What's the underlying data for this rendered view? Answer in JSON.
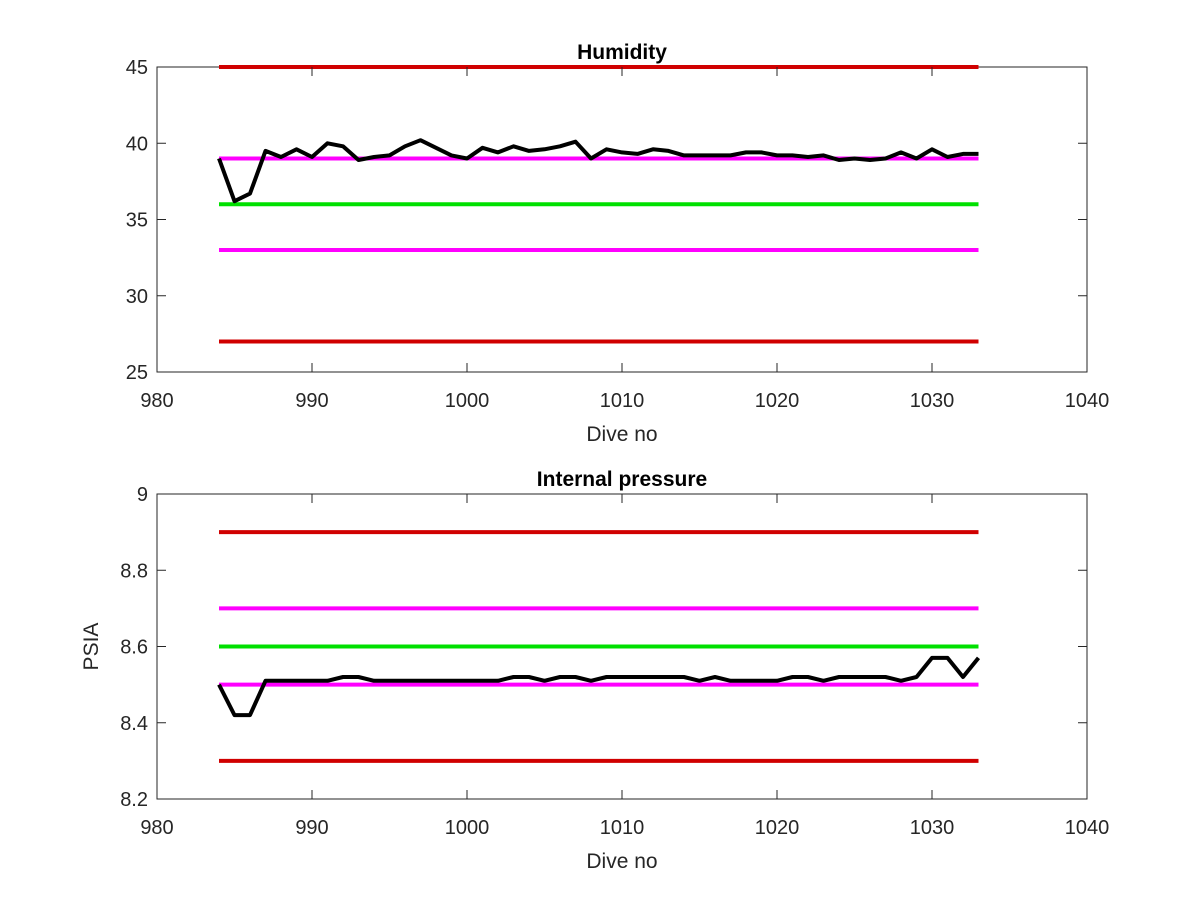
{
  "colors": {
    "red_limit": "#d00000",
    "magenta_limit": "#ff00ff",
    "green_target": "#00e000",
    "data_series": "#000000",
    "axes": "#262626"
  },
  "chart_data": [
    {
      "type": "line",
      "title": "Humidity",
      "xlabel": "Dive no",
      "ylabel": "",
      "xlim": [
        980,
        1040
      ],
      "ylim": [
        25,
        45
      ],
      "xticks": [
        980,
        990,
        1000,
        1010,
        1020,
        1030,
        1040
      ],
      "yticks": [
        25,
        30,
        35,
        40,
        45
      ],
      "grid": false,
      "reference_lines": [
        {
          "color": "red_limit",
          "y": 45,
          "x": [
            984,
            1033
          ]
        },
        {
          "color": "magenta_limit",
          "y": 39,
          "x": [
            984,
            1033
          ]
        },
        {
          "color": "green_target",
          "y": 36,
          "x": [
            984,
            1033
          ]
        },
        {
          "color": "magenta_limit",
          "y": 33,
          "x": [
            984,
            1033
          ]
        },
        {
          "color": "red_limit",
          "y": 27,
          "x": [
            984,
            1033
          ]
        }
      ],
      "series": [
        {
          "color": "data_series",
          "x": [
            984,
            985,
            986,
            987,
            988,
            989,
            990,
            991,
            992,
            993,
            994,
            995,
            996,
            997,
            998,
            999,
            1000,
            1001,
            1002,
            1003,
            1004,
            1005,
            1006,
            1007,
            1008,
            1009,
            1010,
            1011,
            1012,
            1013,
            1014,
            1015,
            1016,
            1017,
            1018,
            1019,
            1020,
            1021,
            1022,
            1023,
            1024,
            1025,
            1026,
            1027,
            1028,
            1029,
            1030,
            1031,
            1032,
            1033
          ],
          "y": [
            39.0,
            36.2,
            36.7,
            39.5,
            39.1,
            39.6,
            39.1,
            40.0,
            39.8,
            38.9,
            39.1,
            39.2,
            39.8,
            40.2,
            39.7,
            39.2,
            39.0,
            39.7,
            39.4,
            39.8,
            39.5,
            39.6,
            39.8,
            40.1,
            39.0,
            39.6,
            39.4,
            39.3,
            39.6,
            39.5,
            39.2,
            39.2,
            39.2,
            39.2,
            39.4,
            39.4,
            39.2,
            39.2,
            39.1,
            39.2,
            38.9,
            39.0,
            38.9,
            39.0,
            39.4,
            39.0,
            39.6,
            39.1,
            39.3,
            39.3
          ]
        }
      ]
    },
    {
      "type": "line",
      "title": "Internal pressure",
      "xlabel": "Dive no",
      "ylabel": "PSIA",
      "xlim": [
        980,
        1040
      ],
      "ylim": [
        8.2,
        9
      ],
      "xticks": [
        980,
        990,
        1000,
        1010,
        1020,
        1030,
        1040
      ],
      "yticks": [
        8.2,
        8.4,
        8.6,
        8.8,
        9
      ],
      "ytick_labels": [
        "8.2",
        "8.4",
        "8.6",
        "8.8",
        "9"
      ],
      "grid": false,
      "reference_lines": [
        {
          "color": "red_limit",
          "y": 8.9,
          "x": [
            984,
            1033
          ]
        },
        {
          "color": "magenta_limit",
          "y": 8.7,
          "x": [
            984,
            1033
          ]
        },
        {
          "color": "green_target",
          "y": 8.6,
          "x": [
            984,
            1033
          ]
        },
        {
          "color": "magenta_limit",
          "y": 8.5,
          "x": [
            984,
            1033
          ]
        },
        {
          "color": "red_limit",
          "y": 8.3,
          "x": [
            984,
            1033
          ]
        }
      ],
      "series": [
        {
          "color": "data_series",
          "x": [
            984,
            985,
            986,
            987,
            988,
            989,
            990,
            991,
            992,
            993,
            994,
            995,
            996,
            997,
            998,
            999,
            1000,
            1001,
            1002,
            1003,
            1004,
            1005,
            1006,
            1007,
            1008,
            1009,
            1010,
            1011,
            1012,
            1013,
            1014,
            1015,
            1016,
            1017,
            1018,
            1019,
            1020,
            1021,
            1022,
            1023,
            1024,
            1025,
            1026,
            1027,
            1028,
            1029,
            1030,
            1031,
            1032,
            1033
          ],
          "y": [
            8.5,
            8.42,
            8.42,
            8.51,
            8.51,
            8.51,
            8.51,
            8.51,
            8.52,
            8.52,
            8.51,
            8.51,
            8.51,
            8.51,
            8.51,
            8.51,
            8.51,
            8.51,
            8.51,
            8.52,
            8.52,
            8.51,
            8.52,
            8.52,
            8.51,
            8.52,
            8.52,
            8.52,
            8.52,
            8.52,
            8.52,
            8.51,
            8.52,
            8.51,
            8.51,
            8.51,
            8.51,
            8.52,
            8.52,
            8.51,
            8.52,
            8.52,
            8.52,
            8.52,
            8.51,
            8.52,
            8.57,
            8.57,
            8.52,
            8.57
          ]
        }
      ]
    }
  ]
}
